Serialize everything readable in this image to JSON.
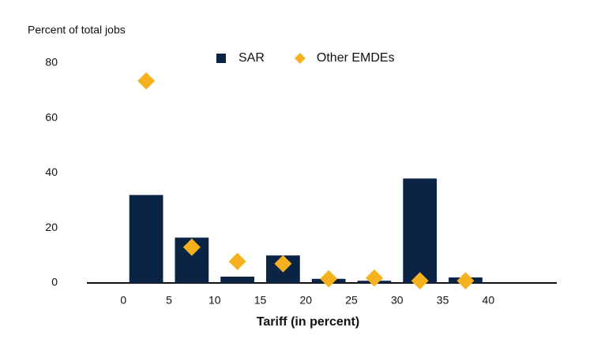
{
  "chart_data": {
    "type": "bar",
    "y_axis_title": "Percent of total jobs",
    "x_axis_title": "Tariff (in percent)",
    "x": [
      2.5,
      7.5,
      12.5,
      17.5,
      22.5,
      27.5,
      32.5,
      37.5
    ],
    "series": [
      {
        "name": "SAR",
        "color": "#0b2445",
        "marker": "bar",
        "values": [
          32,
          16.5,
          2.3,
          10,
          1.5,
          0.8,
          38,
          2
        ]
      },
      {
        "name": "Other EMDEs",
        "color": "#f5b21e",
        "marker": "diamond",
        "values": [
          73.5,
          13,
          7.8,
          7,
          1.5,
          1.8,
          0.8,
          0.8
        ]
      }
    ],
    "xlim": [
      -4,
      47.5
    ],
    "xticks": [
      0,
      5,
      10,
      15,
      20,
      25,
      30,
      35,
      40
    ],
    "ylim": [
      0,
      80
    ],
    "yticks": [
      0,
      20,
      40,
      60,
      80
    ],
    "grid": false,
    "legend": "top"
  }
}
